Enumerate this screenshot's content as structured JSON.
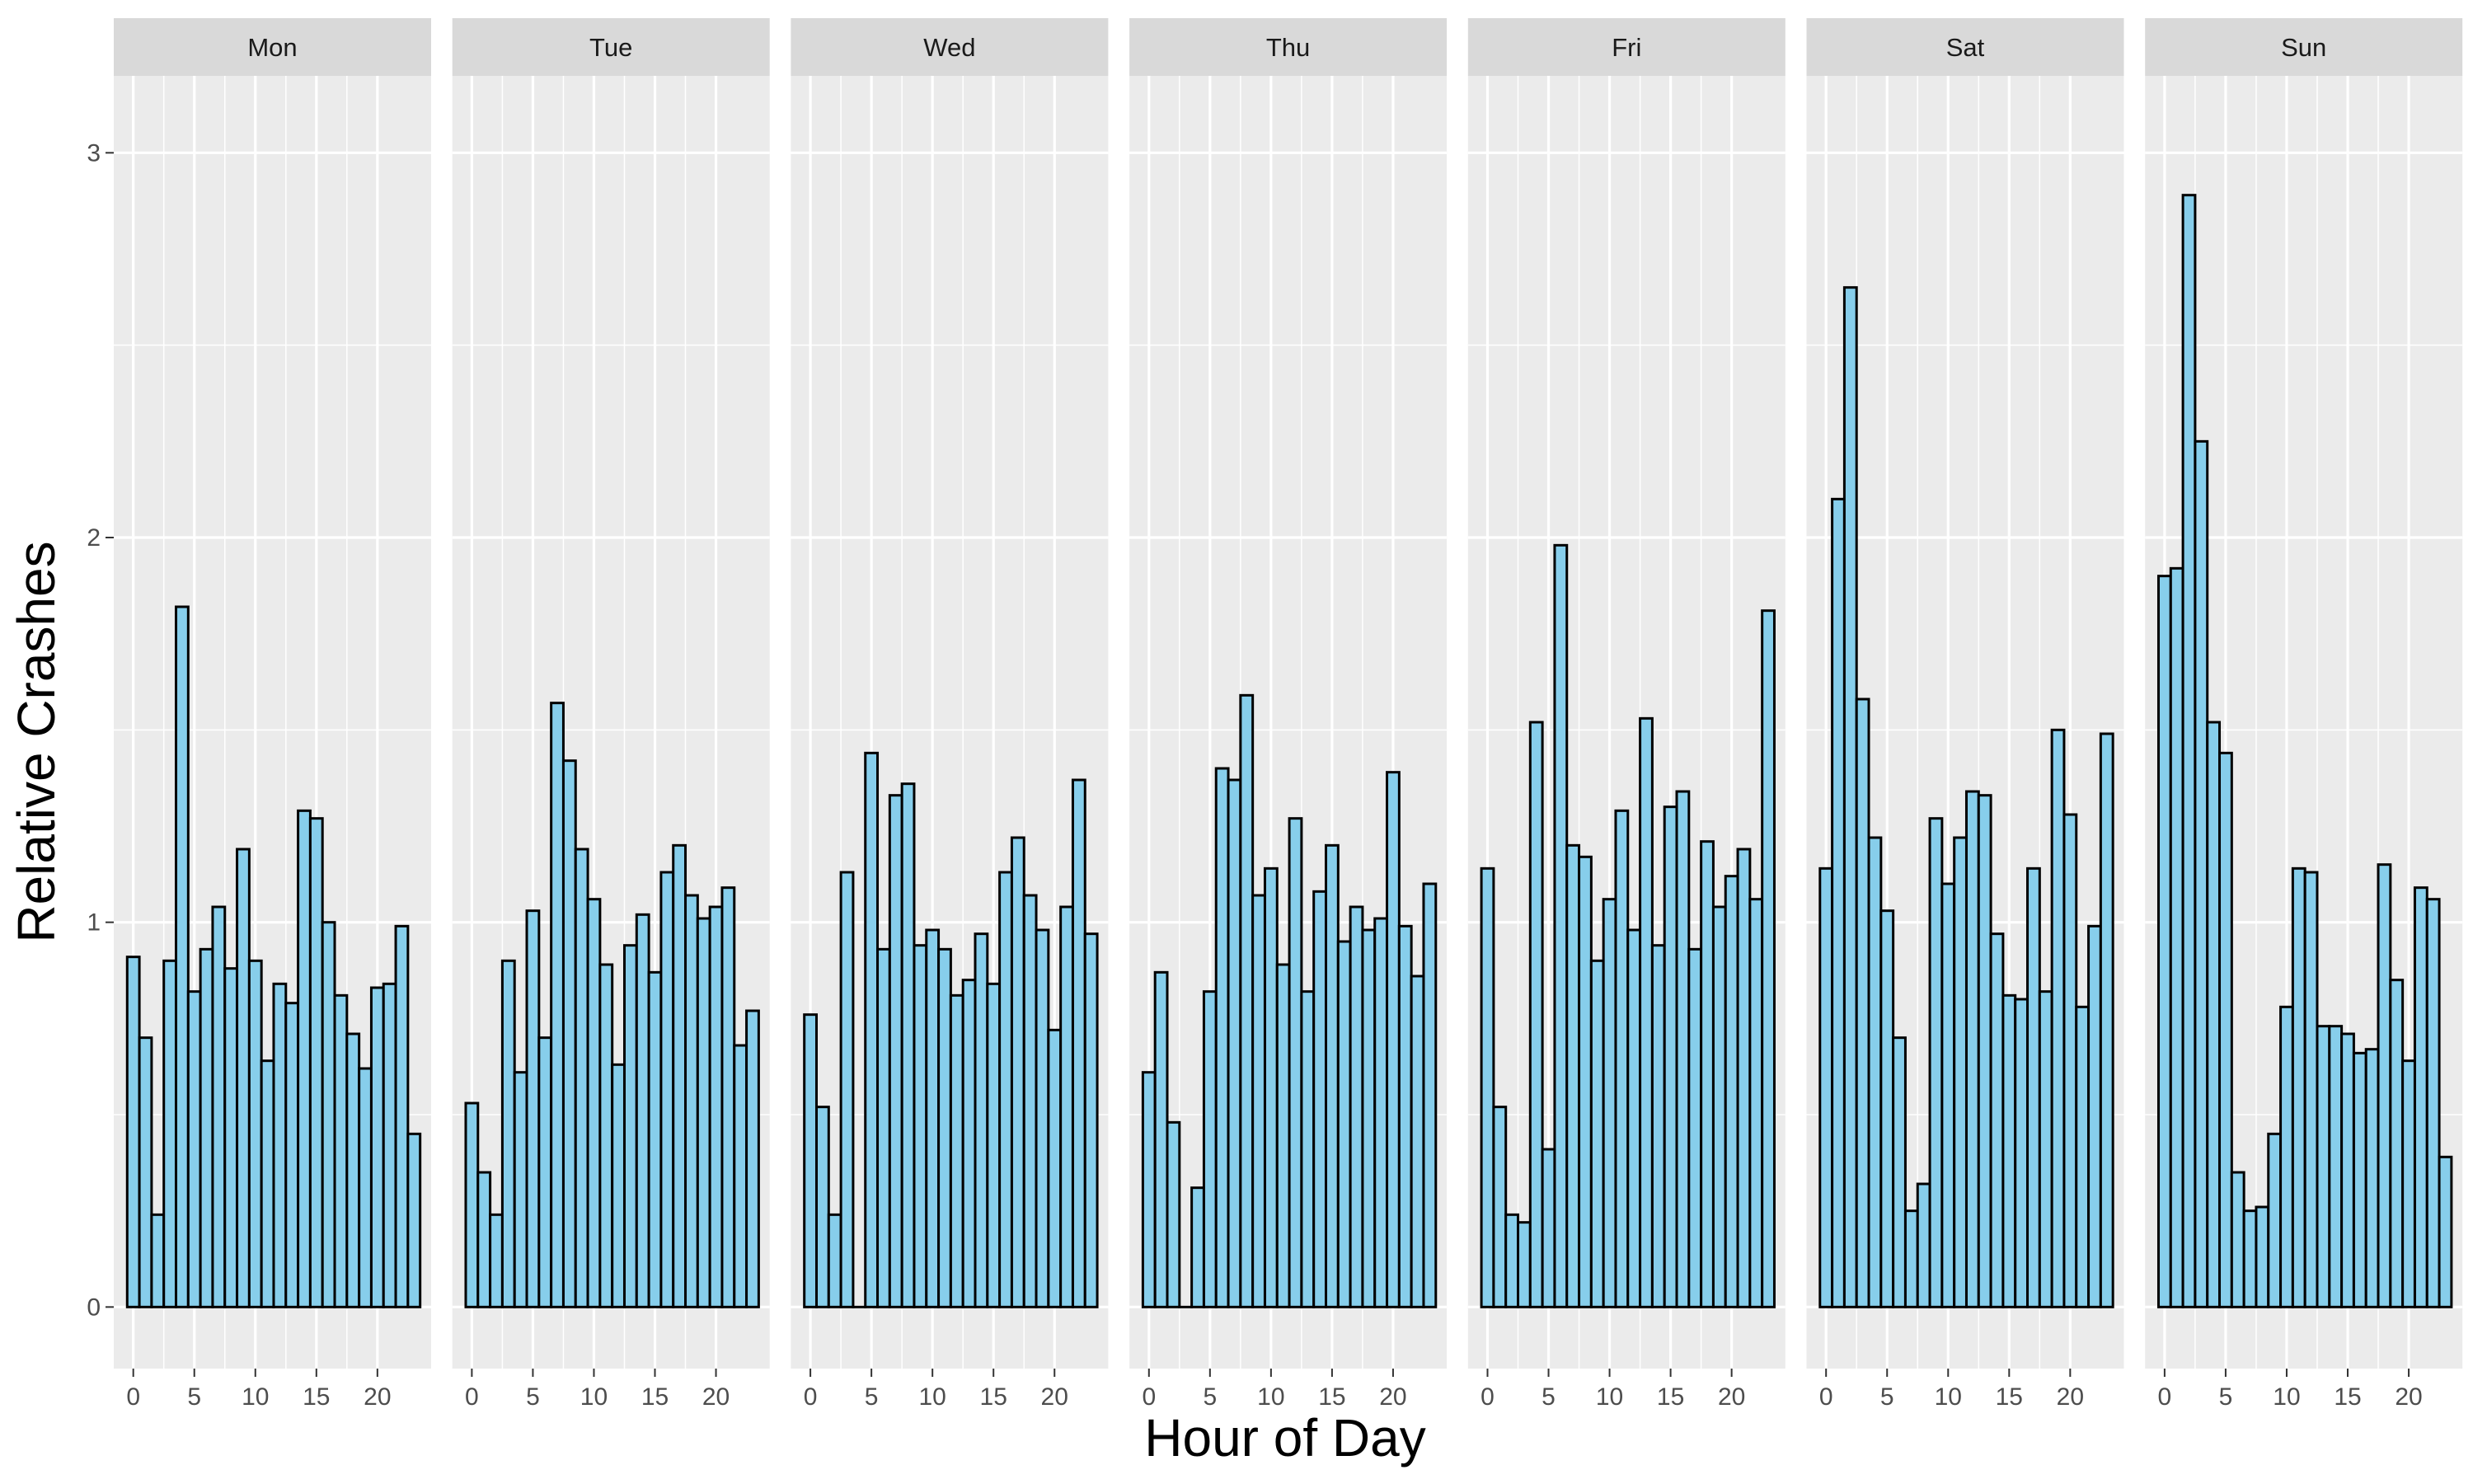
{
  "chart_data": {
    "type": "bar",
    "facet_by": "day",
    "xlabel": "Hour of Day",
    "ylabel": "Relative Crashes",
    "x": [
      0,
      1,
      2,
      3,
      4,
      5,
      6,
      7,
      8,
      9,
      10,
      11,
      12,
      13,
      14,
      15,
      16,
      17,
      18,
      19,
      20,
      21,
      22,
      23
    ],
    "xticks": [
      0,
      5,
      10,
      15,
      20
    ],
    "xlim": [
      -1.6,
      24.4
    ],
    "yticks": [
      0,
      1,
      2,
      3
    ],
    "ylim": [
      -0.16,
      3.2
    ],
    "bar_color": "#87CEEB",
    "bar_outline": "#000000",
    "panel_background": "#EBEBEB",
    "strip_background": "#D9D9D9",
    "grid_color": "#FFFFFF",
    "panels": [
      {
        "name": "Mon",
        "values": [
          0.91,
          0.7,
          0.24,
          0.9,
          1.82,
          0.82,
          0.93,
          1.04,
          0.88,
          1.19,
          0.9,
          0.64,
          0.84,
          0.79,
          1.29,
          1.27,
          1.0,
          0.81,
          0.71,
          0.62,
          0.83,
          0.84,
          0.99,
          0.45
        ]
      },
      {
        "name": "Tue",
        "values": [
          0.53,
          0.35,
          0.24,
          0.9,
          0.61,
          1.03,
          0.7,
          1.57,
          1.42,
          1.19,
          1.06,
          0.89,
          0.63,
          0.94,
          1.02,
          0.87,
          1.13,
          1.2,
          1.07,
          1.01,
          1.04,
          1.09,
          0.68,
          0.77
        ]
      },
      {
        "name": "Wed",
        "values": [
          0.76,
          0.52,
          0.24,
          1.13,
          0.0,
          1.44,
          0.93,
          1.33,
          1.36,
          0.94,
          0.98,
          0.93,
          0.81,
          0.85,
          0.97,
          0.84,
          1.13,
          1.22,
          1.07,
          0.98,
          0.72,
          1.04,
          1.37,
          0.97
        ]
      },
      {
        "name": "Thu",
        "values": [
          0.61,
          0.87,
          0.48,
          0.0,
          0.31,
          0.82,
          1.4,
          1.37,
          1.59,
          1.07,
          1.14,
          0.89,
          1.27,
          0.82,
          1.08,
          1.2,
          0.95,
          1.04,
          0.98,
          1.01,
          1.39,
          0.99,
          0.86,
          1.1
        ]
      },
      {
        "name": "Fri",
        "values": [
          1.14,
          0.52,
          0.24,
          0.22,
          1.52,
          0.41,
          1.98,
          1.2,
          1.17,
          0.9,
          1.06,
          1.29,
          0.98,
          1.53,
          0.94,
          1.3,
          1.34,
          0.93,
          1.21,
          1.04,
          1.12,
          1.19,
          1.06,
          1.81
        ]
      },
      {
        "name": "Sat",
        "values": [
          1.14,
          2.1,
          2.65,
          1.58,
          1.22,
          1.03,
          0.7,
          0.25,
          0.32,
          1.27,
          1.1,
          1.22,
          1.34,
          1.33,
          0.97,
          0.81,
          0.8,
          1.14,
          0.82,
          1.5,
          1.28,
          0.78,
          0.99,
          1.49
        ]
      },
      {
        "name": "Sun",
        "values": [
          1.9,
          1.92,
          2.89,
          2.25,
          1.52,
          1.44,
          0.35,
          0.25,
          0.26,
          0.45,
          0.78,
          1.14,
          1.13,
          0.73,
          0.73,
          0.71,
          0.66,
          0.67,
          1.15,
          0.85,
          0.64,
          1.09,
          1.06,
          0.39
        ]
      }
    ]
  }
}
